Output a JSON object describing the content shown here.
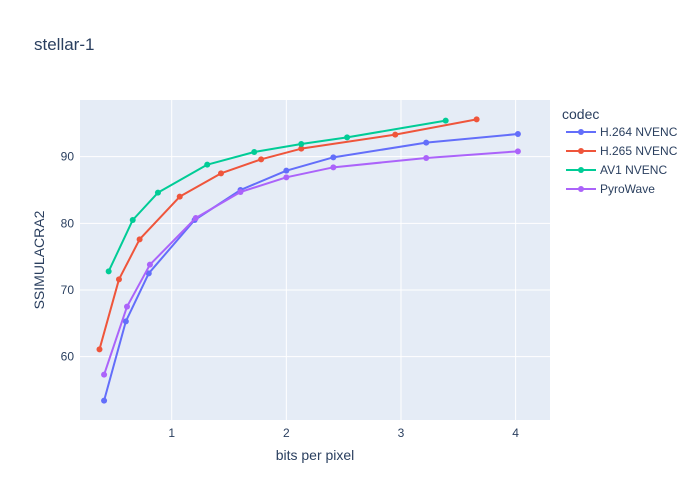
{
  "chart_data": {
    "type": "line",
    "title": "stellar-1",
    "xlabel": "bits per pixel",
    "ylabel": "SSIMULACRA2",
    "legend_title": "codec",
    "legend_position": "right",
    "grid": true,
    "xlim": [
      0.2,
      4.3
    ],
    "ylim": [
      50.5,
      98.5
    ],
    "xticks": [
      1,
      2,
      3,
      4
    ],
    "yticks": [
      60,
      70,
      80,
      90
    ],
    "series": [
      {
        "name": "H.264 NVENC",
        "color": "#636efa",
        "points": [
          [
            0.41,
            53.4
          ],
          [
            0.6,
            65.3
          ],
          [
            0.8,
            72.5
          ],
          [
            1.2,
            80.5
          ],
          [
            1.6,
            85.0
          ],
          [
            2.0,
            87.9
          ],
          [
            2.41,
            89.9
          ],
          [
            3.22,
            92.1
          ],
          [
            4.02,
            93.4
          ]
        ]
      },
      {
        "name": "H.265 NVENC",
        "color": "#ef553b",
        "points": [
          [
            0.37,
            61.1
          ],
          [
            0.54,
            71.6
          ],
          [
            0.72,
            77.6
          ],
          [
            1.07,
            84.0
          ],
          [
            1.43,
            87.5
          ],
          [
            1.78,
            89.6
          ],
          [
            2.13,
            91.2
          ],
          [
            2.95,
            93.3
          ],
          [
            3.66,
            95.6
          ]
        ]
      },
      {
        "name": "AV1 NVENC",
        "color": "#00cc96",
        "points": [
          [
            0.45,
            72.8
          ],
          [
            0.66,
            80.5
          ],
          [
            0.88,
            84.6
          ],
          [
            1.31,
            88.8
          ],
          [
            1.72,
            90.7
          ],
          [
            2.13,
            91.9
          ],
          [
            2.53,
            92.9
          ],
          [
            3.39,
            95.4
          ]
        ]
      },
      {
        "name": "PyroWave",
        "color": "#ab63fa",
        "points": [
          [
            0.41,
            57.3
          ],
          [
            0.61,
            67.5
          ],
          [
            0.81,
            73.8
          ],
          [
            1.21,
            80.8
          ],
          [
            1.6,
            84.7
          ],
          [
            2.0,
            86.9
          ],
          [
            2.41,
            88.4
          ],
          [
            3.22,
            89.8
          ],
          [
            4.02,
            90.8
          ]
        ]
      }
    ]
  }
}
